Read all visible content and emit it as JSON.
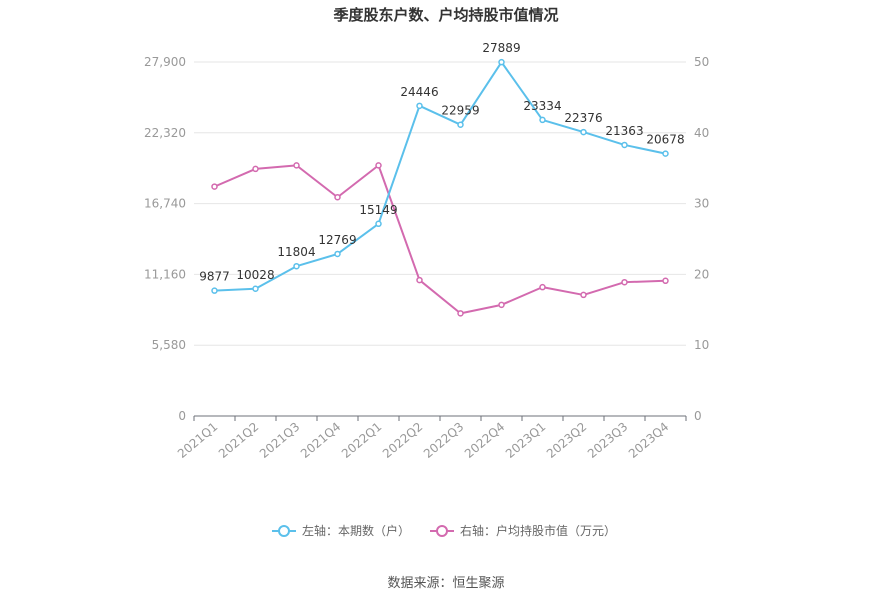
{
  "chart_data": {
    "type": "line",
    "title": "季度股东户数、户均持股市值情况",
    "categories": [
      "2021Q1",
      "2021Q2",
      "2021Q3",
      "2021Q4",
      "2022Q1",
      "2022Q2",
      "2022Q3",
      "2022Q4",
      "2023Q1",
      "2023Q2",
      "2023Q3",
      "2023Q4"
    ],
    "series": [
      {
        "name": "左轴：本期数（户）",
        "axis": "left",
        "color": "#5bc0eb",
        "values": [
          9877,
          10028,
          11804,
          12769,
          15149,
          24446,
          22959,
          27889,
          23334,
          22376,
          21363,
          20678
        ],
        "labels": [
          "9877",
          "10028",
          "11804",
          "12769",
          "15149",
          "24446",
          "22959",
          "27889",
          "23334",
          "22376",
          "21363",
          "20678"
        ]
      },
      {
        "name": "右轴：户均持股市值（万元）",
        "axis": "right",
        "color": "#d36aaf",
        "values": [
          32.4,
          34.9,
          35.4,
          30.9,
          35.4,
          19.2,
          14.5,
          15.7,
          18.2,
          17.1,
          18.9,
          19.1
        ]
      }
    ],
    "y_left": {
      "ylim": [
        0,
        27900
      ],
      "ticks": [
        0,
        5580,
        11160,
        16740,
        22320,
        27900
      ],
      "tick_labels": [
        "0",
        "5,580",
        "11,160",
        "16,740",
        "22,320",
        "27,900"
      ]
    },
    "y_right": {
      "ylim": [
        0,
        50
      ],
      "ticks": [
        0,
        10,
        20,
        30,
        40,
        50
      ],
      "tick_labels": [
        "0",
        "10",
        "20",
        "30",
        "40",
        "50"
      ]
    },
    "grid": true,
    "legend_position": "bottom"
  },
  "footer": {
    "source": "数据来源：恒生聚源"
  }
}
